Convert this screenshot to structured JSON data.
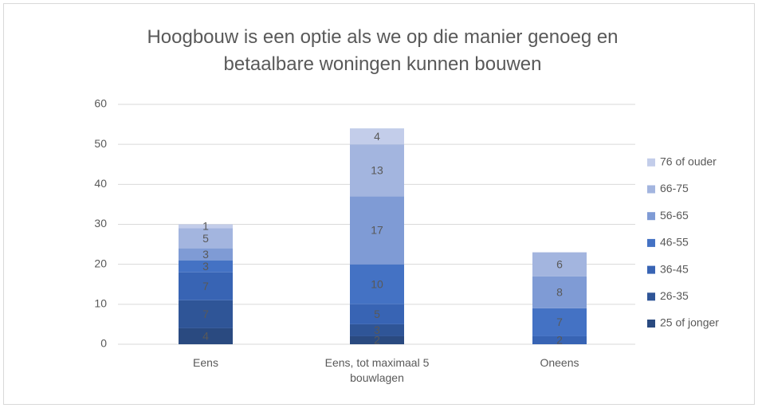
{
  "chart_data": {
    "type": "stacked_bar",
    "title": "Hoogbouw is een optie als we op die manier genoeg en betaalbare woningen kunnen bouwen",
    "categories": [
      "Eens",
      "Eens, tot maximaal 5 bouwlagen",
      "Oneens"
    ],
    "series": [
      {
        "name": "25 of jonger",
        "color": "#2a4a80",
        "values": [
          4,
          2,
          null
        ]
      },
      {
        "name": "26-35",
        "color": "#2f5597",
        "values": [
          7,
          3,
          null
        ]
      },
      {
        "name": "36-45",
        "color": "#3864b4",
        "values": [
          7,
          5,
          2
        ]
      },
      {
        "name": "46-55",
        "color": "#4472c4",
        "values": [
          3,
          10,
          7
        ]
      },
      {
        "name": "56-65",
        "color": "#7f9bd5",
        "values": [
          3,
          17,
          8
        ]
      },
      {
        "name": "66-75",
        "color": "#a3b5df",
        "values": [
          5,
          13,
          6
        ]
      },
      {
        "name": "76 of ouder",
        "color": "#c3cdea",
        "values": [
          1,
          4,
          null
        ]
      }
    ],
    "ylim": [
      0,
      60
    ],
    "yticks": [
      0,
      10,
      20,
      30,
      40,
      50,
      60
    ],
    "grid": true,
    "legend": "right"
  }
}
